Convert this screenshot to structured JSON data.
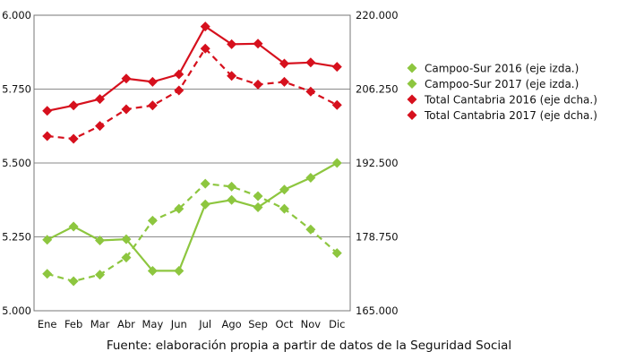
{
  "chart_data": {
    "type": "line",
    "categories": [
      "Ene",
      "Feb",
      "Mar",
      "Abr",
      "May",
      "Jun",
      "Jul",
      "Ago",
      "Sep",
      "Oct",
      "Nov",
      "Dic"
    ],
    "y_left_ticks": [
      "5.000",
      "5.250",
      "5.500",
      "5.750",
      "6.000"
    ],
    "y_right_ticks": [
      "165.000",
      "178.750",
      "192.500",
      "206.250",
      "220.000"
    ],
    "ylim_left": [
      5000,
      6000
    ],
    "ylim_right": [
      165000,
      220000
    ],
    "grid": true,
    "legend_position": "right",
    "series": [
      {
        "name": "Campoo-Sur 2016 (eje izda.)",
        "axis": "left",
        "color": "#8dc63f",
        "dashed": true,
        "values": [
          5125,
          5100,
          5122,
          5180,
          5305,
          5345,
          5430,
          5420,
          5388,
          5345,
          5275,
          5195
        ]
      },
      {
        "name": "Campoo-Sur 2017 (eje izda.)",
        "axis": "left",
        "color": "#8dc63f",
        "dashed": false,
        "values": [
          5240,
          5285,
          5238,
          5242,
          5135,
          5135,
          5360,
          5375,
          5350,
          5410,
          5450,
          5500
        ]
      },
      {
        "name": "Total Cantabria 2016 (eje dcha.)",
        "axis": "right",
        "color": "#d6101d",
        "dashed": true,
        "values": [
          197500,
          197000,
          199400,
          202500,
          203200,
          206000,
          213800,
          208700,
          207100,
          207600,
          205800,
          203300
        ]
      },
      {
        "name": "Total Cantabria 2017 (eje dcha.)",
        "axis": "right",
        "color": "#d6101d",
        "dashed": false,
        "values": [
          202200,
          203200,
          204400,
          208200,
          207600,
          209000,
          217900,
          214600,
          214700,
          211000,
          211200,
          210400
        ]
      }
    ]
  },
  "source_note": "Fuente: elaboración propia a partir de datos de la Seguridad Social"
}
